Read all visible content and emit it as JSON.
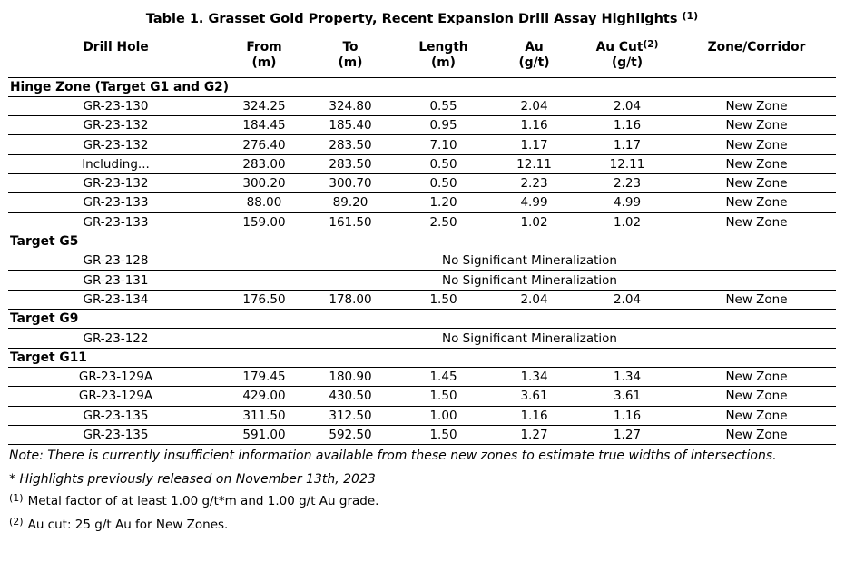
{
  "table": {
    "title": "Table 1. Grasset Gold Property, Recent Expansion Drill Assay Highlights",
    "title_sup": "(1)",
    "columns": [
      {
        "label": "Drill Hole",
        "unit": ""
      },
      {
        "label": "From",
        "unit": "(m)"
      },
      {
        "label": "To",
        "unit": "(m)"
      },
      {
        "label": "Length",
        "unit": "(m)"
      },
      {
        "label": "Au",
        "unit": "(g/t)"
      },
      {
        "label": "Au Cut",
        "sup": "(2)",
        "unit": "(g/t)"
      },
      {
        "label": "Zone/Corridor",
        "unit": ""
      }
    ],
    "sections": [
      {
        "header": "Hinge Zone (Target G1 and G2)",
        "rows": [
          {
            "drill_hole": "GR-23-130",
            "from": "324.25",
            "to": "324.80",
            "length": "0.55",
            "au": "2.04",
            "au_cut": "2.04",
            "zone": "New Zone"
          },
          {
            "drill_hole": "GR-23-132",
            "from": "184.45",
            "to": "185.40",
            "length": "0.95",
            "au": "1.16",
            "au_cut": "1.16",
            "zone": "New Zone"
          },
          {
            "drill_hole": "GR-23-132",
            "from": "276.40",
            "to": "283.50",
            "length": "7.10",
            "au": "1.17",
            "au_cut": "1.17",
            "zone": "New Zone"
          },
          {
            "drill_hole": "Including...",
            "from": "283.00",
            "to": "283.50",
            "length": "0.50",
            "au": "12.11",
            "au_cut": "12.11",
            "zone": "New Zone"
          },
          {
            "drill_hole": "GR-23-132",
            "from": "300.20",
            "to": "300.70",
            "length": "0.50",
            "au": "2.23",
            "au_cut": "2.23",
            "zone": "New Zone"
          },
          {
            "drill_hole": "GR-23-133",
            "from": "88.00",
            "to": "89.20",
            "length": "1.20",
            "au": "4.99",
            "au_cut": "4.99",
            "zone": "New Zone"
          },
          {
            "drill_hole": "GR-23-133",
            "from": "159.00",
            "to": "161.50",
            "length": "2.50",
            "au": "1.02",
            "au_cut": "1.02",
            "zone": "New Zone"
          }
        ]
      },
      {
        "header": "Target G5",
        "rows": [
          {
            "drill_hole": "GR-23-128",
            "note": "No Significant Mineralization"
          },
          {
            "drill_hole": "GR-23-131",
            "note": "No Significant Mineralization"
          },
          {
            "drill_hole": "GR-23-134",
            "from": "176.50",
            "to": "178.00",
            "length": "1.50",
            "au": "2.04",
            "au_cut": "2.04",
            "zone": "New Zone"
          }
        ]
      },
      {
        "header": "Target G9",
        "rows": [
          {
            "drill_hole": "GR-23-122",
            "note": "No Significant Mineralization"
          }
        ]
      },
      {
        "header": "Target G11",
        "rows": [
          {
            "drill_hole": "GR-23-129A",
            "from": "179.45",
            "to": "180.90",
            "length": "1.45",
            "au": "1.34",
            "au_cut": "1.34",
            "zone": "New Zone"
          },
          {
            "drill_hole": "GR-23-129A",
            "from": "429.00",
            "to": "430.50",
            "length": "1.50",
            "au": "3.61",
            "au_cut": "3.61",
            "zone": "New Zone"
          },
          {
            "drill_hole": "GR-23-135",
            "from": "311.50",
            "to": "312.50",
            "length": "1.00",
            "au": "1.16",
            "au_cut": "1.16",
            "zone": "New Zone"
          },
          {
            "drill_hole": "GR-23-135",
            "from": "591.00",
            "to": "592.50",
            "length": "1.50",
            "au": "1.27",
            "au_cut": "1.27",
            "zone": "New Zone"
          }
        ]
      }
    ]
  },
  "footnotes": {
    "note": "Note: There is currently insufficient information available from these new zones to estimate true widths of intersections.",
    "highlights": "* Highlights previously released on November 13th, 2023",
    "fn1_marker": "(1)",
    "fn1_text": "Metal factor of at least 1.00 g/t*m and 1.00 g/t Au grade.",
    "fn2_marker": "(2)",
    "fn2_text": "Au cut: 25 g/t Au for New Zones."
  },
  "colors": {
    "text": "#000000",
    "background": "#ffffff",
    "rule": "#000000"
  }
}
